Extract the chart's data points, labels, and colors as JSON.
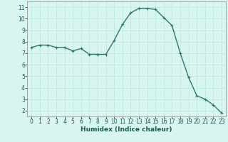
{
  "x": [
    0,
    1,
    2,
    3,
    4,
    5,
    6,
    7,
    8,
    9,
    10,
    11,
    12,
    13,
    14,
    15,
    16,
    17,
    18,
    19,
    20,
    21,
    22,
    23
  ],
  "y": [
    7.5,
    7.7,
    7.7,
    7.5,
    7.5,
    7.2,
    7.4,
    6.9,
    6.9,
    6.9,
    8.1,
    9.5,
    10.5,
    10.9,
    10.9,
    10.8,
    10.1,
    9.4,
    7.0,
    4.9,
    3.3,
    3.0,
    2.5,
    1.8
  ],
  "line_color": "#2a7a6a",
  "marker": "+",
  "marker_size": 3,
  "bg_color": "#d9f5f0",
  "grid_color": "#b8e8e0",
  "xlabel": "Humidex (Indice chaleur)",
  "xlim": [
    -0.5,
    23.5
  ],
  "ylim": [
    1.5,
    11.5
  ],
  "yticks": [
    2,
    3,
    4,
    5,
    6,
    7,
    8,
    9,
    10,
    11
  ],
  "xticks": [
    0,
    1,
    2,
    3,
    4,
    5,
    6,
    7,
    8,
    9,
    10,
    11,
    12,
    13,
    14,
    15,
    16,
    17,
    18,
    19,
    20,
    21,
    22,
    23
  ],
  "tick_fontsize": 5.5,
  "xlabel_fontsize": 6.5,
  "linewidth": 1.0
}
